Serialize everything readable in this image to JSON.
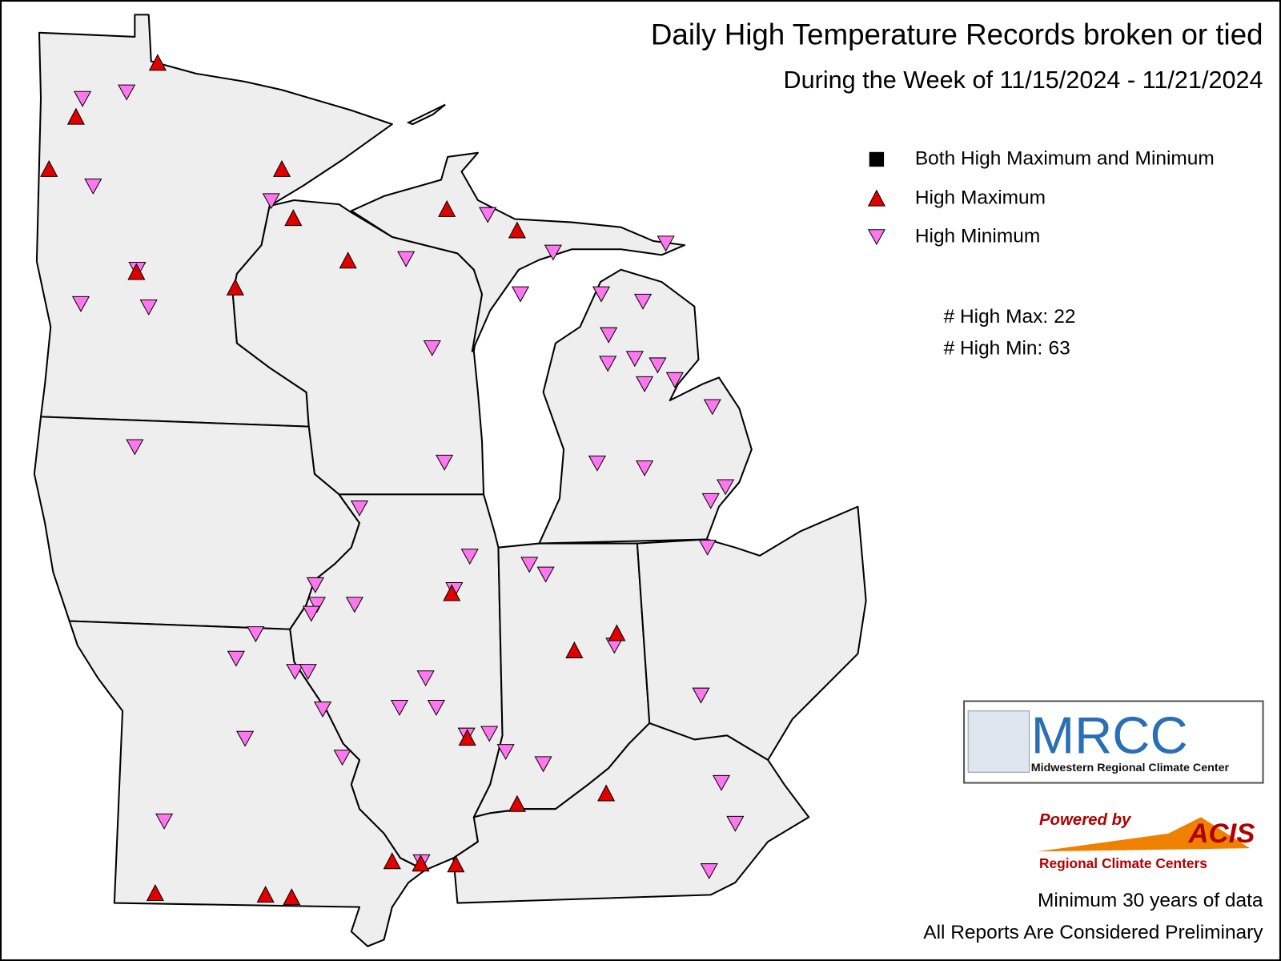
{
  "header": {
    "title": "Daily High Temperature Records broken or tied",
    "subtitle": "During the Week of 11/15/2024 - 11/21/2024"
  },
  "legend": [
    {
      "label": "Both High Maximum and Minimum"
    },
    {
      "label": "High Maximum"
    },
    {
      "label": "High Minimum"
    }
  ],
  "counts": [
    {
      "label": "# High Max:",
      "value": 22
    },
    {
      "label": "# High Min:",
      "value": 63
    }
  ],
  "logos": {
    "mrcc": {
      "name": "MRCC",
      "full": "Midwestern Regional Climate Center"
    },
    "acis": {
      "powered": "Powered by",
      "name": "ACIS",
      "sub": "Regional Climate Centers"
    }
  },
  "footer": [
    "Minimum 30 years of data",
    "All Reports Are Considered Preliminary"
  ]
}
